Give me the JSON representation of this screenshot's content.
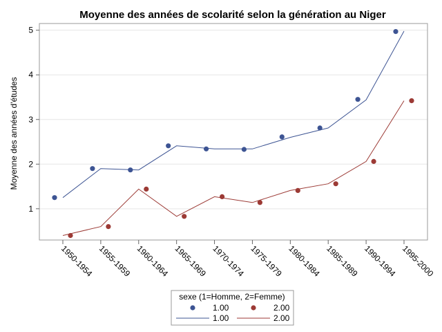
{
  "chart_data": {
    "type": "line",
    "title": "Moyenne des années de scolarité selon la génération au Niger",
    "ylabel": "Moyenne des années d'études",
    "xlabel": "",
    "categories": [
      "1950-1954",
      "1955-1959",
      "1960-1964",
      "1965-1969",
      "1970-1974",
      "1975-1979",
      "1980-1984",
      "1985-1989",
      "1990-1994",
      "1995-2000"
    ],
    "ylim": [
      0.3,
      5.15
    ],
    "yticks": [
      "1",
      "2",
      "3",
      "4",
      "5"
    ],
    "grid": true,
    "series": [
      {
        "name": "1.00",
        "color": "#3d5493",
        "line": [
          1.25,
          1.9,
          1.87,
          2.41,
          2.34,
          2.34,
          2.6,
          2.81,
          3.44,
          4.98
        ],
        "points": [
          1.25,
          1.9,
          1.87,
          2.41,
          2.34,
          2.33,
          2.61,
          2.81,
          3.45,
          4.97
        ]
      },
      {
        "name": "2.00",
        "color": "#9c3a35",
        "line": [
          0.4,
          0.6,
          1.44,
          0.83,
          1.27,
          1.14,
          1.41,
          1.56,
          2.06,
          3.42
        ],
        "points": [
          0.4,
          0.6,
          1.44,
          0.83,
          1.27,
          1.14,
          1.41,
          1.56,
          2.06,
          3.42
        ]
      }
    ],
    "legend": {
      "title": "sexe (1=Homme, 2=Femme)",
      "position": "bottom",
      "entries": [
        "1.00",
        "2.00",
        "1.00",
        "2.00"
      ]
    }
  }
}
